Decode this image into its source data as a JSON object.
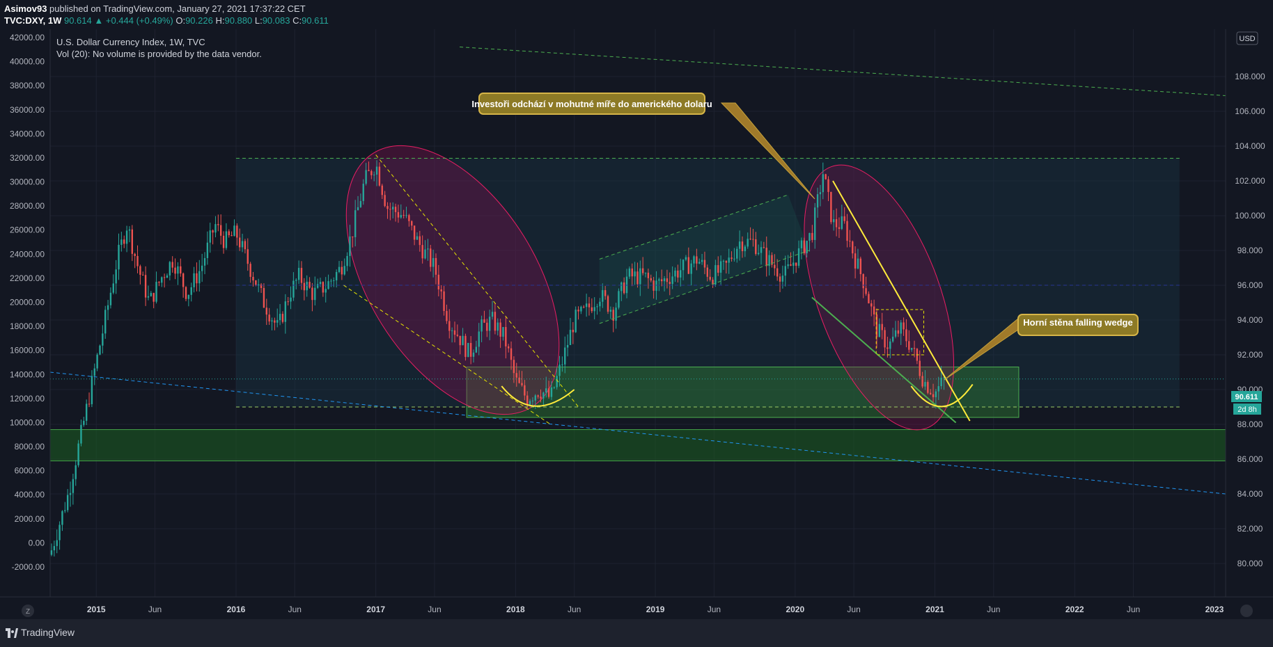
{
  "header": {
    "author": "Asimov93",
    "published_text": "published on TradingView.com, January 27, 2021 17:37:22 CET",
    "symbol": "TVC:DXY, 1W",
    "last": "90.614",
    "change": "+0.444 (+0.49%)",
    "o_label": "O:",
    "o": "90.226",
    "h_label": "H:",
    "h": "90.880",
    "l_label": "L:",
    "l": "90.083",
    "c_label": "C:",
    "c": "90.611"
  },
  "legend": {
    "title": "U.S. Dollar Currency Index, 1W, TVC",
    "volume": "Vol (20): No volume is provided by the data vendor."
  },
  "annotations": {
    "callout1": "Investoři odchází v mohutné míře do amerického dolaru",
    "callout2": "Horní stěna falling wedge"
  },
  "price_badge": {
    "value": "90.611",
    "countdown": "2d 8h"
  },
  "currency": "USD",
  "zoom_icon_label": "Z",
  "footer": {
    "brand": "TradingView"
  },
  "colors": {
    "background": "#131722",
    "up": "#26a69a",
    "down": "#ef5350",
    "grid": "#1f2433",
    "dashed_green": "#4caf50",
    "dashed_yellow": "#e6e600",
    "dashed_blue": "#3a6fd8",
    "ellipse": "#e91e63",
    "zone_green": "#2e7d32"
  },
  "chart_data": {
    "type": "candlestick",
    "title": "U.S. Dollar Currency Index, 1W, TVC",
    "right_axis": {
      "label": "USD",
      "min": 80,
      "max": 110,
      "ticks": [
        80,
        82,
        84,
        86,
        88,
        90,
        92,
        94,
        96,
        98,
        100,
        102,
        104,
        106,
        108
      ]
    },
    "left_axis": {
      "min": -2000,
      "max": 42000,
      "ticks": [
        -2000,
        0,
        2000,
        4000,
        6000,
        8000,
        10000,
        12000,
        14000,
        16000,
        18000,
        20000,
        22000,
        24000,
        26000,
        28000,
        30000,
        32000,
        34000,
        36000,
        38000,
        40000,
        42000
      ]
    },
    "left_axis_labels": [
      "-2000.00",
      "0.00",
      "2000.00",
      "4000.00",
      "6000.00",
      "8000.00",
      "10000.00",
      "12000.00",
      "14000.00",
      "16000.00",
      "18000.00",
      "20000.00",
      "22000.00",
      "24000.00",
      "26000.00",
      "28000.00",
      "30000.00",
      "32000.00",
      "34000.00",
      "36000.00",
      "38000.00",
      "40000.00",
      "42000.00"
    ],
    "right_axis_labels": [
      "80.000",
      "82.000",
      "84.000",
      "86.000",
      "88.000",
      "90.000",
      "92.000",
      "94.000",
      "96.000",
      "98.000",
      "100.000",
      "102.000",
      "104.000",
      "106.000",
      "108.000"
    ],
    "time_axis": {
      "start": 2014.67,
      "end": 2023.08,
      "ticks": [
        {
          "t": 2015.0,
          "label": "2015",
          "major": true
        },
        {
          "t": 2015.42,
          "label": "Jun",
          "major": false
        },
        {
          "t": 2016.0,
          "label": "2016",
          "major": true
        },
        {
          "t": 2016.42,
          "label": "Jun",
          "major": false
        },
        {
          "t": 2017.0,
          "label": "2017",
          "major": true
        },
        {
          "t": 2017.42,
          "label": "Jun",
          "major": false
        },
        {
          "t": 2018.0,
          "label": "2018",
          "major": true
        },
        {
          "t": 2018.42,
          "label": "Jun",
          "major": false
        },
        {
          "t": 2019.0,
          "label": "2019",
          "major": true
        },
        {
          "t": 2019.42,
          "label": "Jun",
          "major": false
        },
        {
          "t": 2020.0,
          "label": "2020",
          "major": true
        },
        {
          "t": 2020.42,
          "label": "Jun",
          "major": false
        },
        {
          "t": 2021.0,
          "label": "2021",
          "major": true
        },
        {
          "t": 2021.42,
          "label": "Jun",
          "major": false
        },
        {
          "t": 2022.0,
          "label": "2022",
          "major": true
        },
        {
          "t": 2022.42,
          "label": "Jun",
          "major": false
        },
        {
          "t": 2023.0,
          "label": "2023",
          "major": true
        }
      ]
    },
    "close_path": [
      [
        2014.67,
        80.5
      ],
      [
        2014.8,
        84.0
      ],
      [
        2014.92,
        88.5
      ],
      [
        2015.05,
        93.5
      ],
      [
        2015.15,
        97.5
      ],
      [
        2015.22,
        99.5
      ],
      [
        2015.3,
        97.0
      ],
      [
        2015.38,
        95.0
      ],
      [
        2015.47,
        96.5
      ],
      [
        2015.55,
        97.5
      ],
      [
        2015.65,
        95.5
      ],
      [
        2015.75,
        97.0
      ],
      [
        2015.85,
        99.5
      ],
      [
        2015.92,
        98.5
      ],
      [
        2016.0,
        99.0
      ],
      [
        2016.1,
        97.0
      ],
      [
        2016.2,
        95.0
      ],
      [
        2016.3,
        93.5
      ],
      [
        2016.38,
        95.5
      ],
      [
        2016.45,
        96.5
      ],
      [
        2016.55,
        95.5
      ],
      [
        2016.65,
        96.0
      ],
      [
        2016.75,
        97.0
      ],
      [
        2016.83,
        99.0
      ],
      [
        2016.92,
        102.0
      ],
      [
        2017.0,
        103.0
      ],
      [
        2017.08,
        100.5
      ],
      [
        2017.2,
        100.0
      ],
      [
        2017.3,
        98.5
      ],
      [
        2017.42,
        97.0
      ],
      [
        2017.52,
        94.0
      ],
      [
        2017.6,
        93.0
      ],
      [
        2017.67,
        92.0
      ],
      [
        2017.75,
        93.5
      ],
      [
        2017.83,
        94.0
      ],
      [
        2017.92,
        93.0
      ],
      [
        2018.0,
        90.5
      ],
      [
        2018.08,
        89.5
      ],
      [
        2018.17,
        90.0
      ],
      [
        2018.25,
        89.5
      ],
      [
        2018.33,
        91.5
      ],
      [
        2018.42,
        94.0
      ],
      [
        2018.5,
        94.5
      ],
      [
        2018.6,
        95.5
      ],
      [
        2018.7,
        94.5
      ],
      [
        2018.8,
        96.5
      ],
      [
        2018.92,
        96.5
      ],
      [
        2019.0,
        96.0
      ],
      [
        2019.1,
        96.5
      ],
      [
        2019.2,
        97.0
      ],
      [
        2019.3,
        97.5
      ],
      [
        2019.4,
        96.5
      ],
      [
        2019.5,
        97.0
      ],
      [
        2019.6,
        98.5
      ],
      [
        2019.7,
        98.5
      ],
      [
        2019.8,
        97.5
      ],
      [
        2019.92,
        96.5
      ],
      [
        2020.0,
        97.5
      ],
      [
        2020.12,
        99.0
      ],
      [
        2020.2,
        102.5
      ],
      [
        2020.27,
        99.5
      ],
      [
        2020.35,
        99.5
      ],
      [
        2020.43,
        97.5
      ],
      [
        2020.5,
        96.0
      ],
      [
        2020.58,
        93.5
      ],
      [
        2020.67,
        92.5
      ],
      [
        2020.75,
        93.5
      ],
      [
        2020.83,
        92.5
      ],
      [
        2020.92,
        90.5
      ],
      [
        2021.0,
        89.8
      ],
      [
        2021.07,
        90.6
      ]
    ],
    "overlays": {
      "resistance_level": 103.3,
      "support_level": 89.0,
      "range_box": {
        "t1": 2016.0,
        "t2": 2022.75,
        "top": 103.3,
        "bottom": 89.0
      },
      "support_zone": {
        "t1": 2017.65,
        "t2": 2021.6,
        "top": 91.3,
        "bottom": 88.4
      },
      "lower_zone": {
        "top": 87.7,
        "bottom": 85.9
      },
      "mid_level_blue": 96.0,
      "callout_price_1": 102.0,
      "callout_price_2": 91.8
    }
  }
}
